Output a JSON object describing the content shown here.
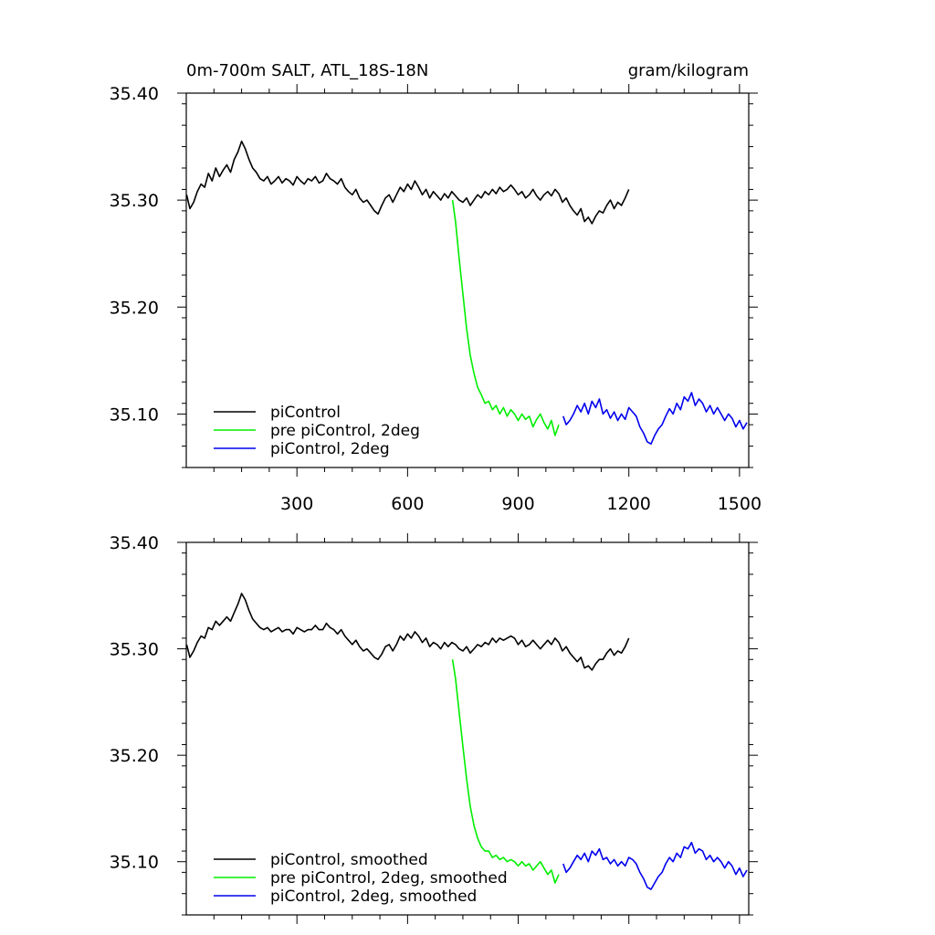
{
  "chart_data": [
    {
      "type": "line",
      "title_left": "0m-700m SALT, ATL_18S-18N",
      "title_right": "gram/kilogram",
      "xlim": [
        0,
        1525
      ],
      "ylim": [
        35.05,
        35.4
      ],
      "x_ticks": [
        300,
        600,
        900,
        1200,
        1500
      ],
      "x_tick_labels": [
        "300",
        "600",
        "900",
        "1200",
        "1500"
      ],
      "y_ticks": [
        35.1,
        35.2,
        35.3,
        35.4
      ],
      "y_tick_labels": [
        "35.10",
        "35.20",
        "35.30",
        "35.40"
      ],
      "grid": false,
      "legend_position": "bottom-left",
      "series": [
        {
          "name": "piControl",
          "color": "#000000",
          "x": [
            1,
            10,
            20,
            30,
            40,
            50,
            60,
            70,
            80,
            90,
            100,
            110,
            120,
            130,
            140,
            150,
            160,
            170,
            180,
            190,
            200,
            210,
            220,
            230,
            240,
            250,
            260,
            270,
            280,
            290,
            300,
            310,
            320,
            330,
            340,
            350,
            360,
            370,
            380,
            390,
            400,
            410,
            420,
            430,
            440,
            450,
            460,
            470,
            480,
            490,
            500,
            510,
            520,
            530,
            540,
            550,
            560,
            570,
            580,
            590,
            600,
            610,
            620,
            630,
            640,
            650,
            660,
            670,
            680,
            690,
            700,
            710,
            720,
            730,
            740,
            750,
            760,
            770,
            780,
            790,
            800,
            810,
            820,
            830,
            840,
            850,
            860,
            870,
            880,
            890,
            900,
            910,
            920,
            930,
            940,
            950,
            960,
            970,
            980,
            990,
            1000,
            1010,
            1020,
            1030,
            1040,
            1050,
            1060,
            1070,
            1080,
            1090,
            1100,
            1110,
            1120,
            1130,
            1140,
            1150,
            1160,
            1170,
            1180,
            1190,
            1200
          ],
          "y": [
            35.305,
            35.292,
            35.298,
            35.308,
            35.315,
            35.312,
            35.325,
            35.318,
            35.33,
            35.322,
            35.328,
            35.333,
            35.326,
            35.338,
            35.345,
            35.355,
            35.348,
            35.338,
            35.33,
            35.326,
            35.32,
            35.318,
            35.322,
            35.315,
            35.318,
            35.322,
            35.316,
            35.32,
            35.318,
            35.314,
            35.322,
            35.318,
            35.315,
            35.32,
            35.318,
            35.322,
            35.316,
            35.318,
            35.325,
            35.32,
            35.318,
            35.315,
            35.32,
            35.312,
            35.308,
            35.305,
            35.31,
            35.302,
            35.298,
            35.3,
            35.295,
            35.29,
            35.287,
            35.295,
            35.302,
            35.305,
            35.298,
            35.305,
            35.312,
            35.308,
            35.315,
            35.31,
            35.318,
            35.312,
            35.305,
            35.31,
            35.302,
            35.308,
            35.304,
            35.3,
            35.306,
            35.302,
            35.308,
            35.304,
            35.3,
            35.298,
            35.302,
            35.295,
            35.3,
            35.305,
            35.302,
            35.308,
            35.305,
            35.31,
            35.306,
            35.312,
            35.308,
            35.31,
            35.314,
            35.31,
            35.305,
            35.308,
            35.302,
            35.305,
            35.31,
            35.304,
            35.3,
            35.305,
            35.308,
            35.304,
            35.31,
            35.306,
            35.298,
            35.302,
            35.295,
            35.29,
            35.286,
            35.292,
            35.28,
            35.284,
            35.278,
            35.285,
            35.29,
            35.288,
            35.295,
            35.3,
            35.292,
            35.298,
            35.295,
            35.302,
            35.31
          ]
        },
        {
          "name": "pre piControl, 2deg",
          "color": "#00ee00",
          "x": [
            722,
            730,
            740,
            750,
            760,
            770,
            780,
            790,
            800,
            810,
            820,
            830,
            840,
            850,
            860,
            870,
            880,
            890,
            900,
            910,
            920,
            930,
            940,
            950,
            960,
            970,
            980,
            990,
            1000,
            1010
          ],
          "y": [
            35.3,
            35.28,
            35.245,
            35.212,
            35.18,
            35.155,
            35.138,
            35.125,
            35.118,
            35.11,
            35.112,
            35.104,
            35.108,
            35.1,
            35.106,
            35.098,
            35.104,
            35.1,
            35.094,
            35.1,
            35.095,
            35.098,
            35.088,
            35.095,
            35.1,
            35.092,
            35.086,
            35.094,
            35.08,
            35.09
          ]
        },
        {
          "name": "piControl, 2deg",
          "color": "#0000ee",
          "x": [
            1022,
            1030,
            1040,
            1050,
            1060,
            1070,
            1080,
            1090,
            1100,
            1110,
            1120,
            1130,
            1140,
            1150,
            1160,
            1170,
            1180,
            1190,
            1200,
            1210,
            1220,
            1230,
            1240,
            1250,
            1260,
            1270,
            1280,
            1290,
            1300,
            1310,
            1320,
            1330,
            1340,
            1350,
            1360,
            1370,
            1380,
            1390,
            1400,
            1410,
            1420,
            1430,
            1440,
            1450,
            1460,
            1470,
            1480,
            1490,
            1500,
            1510,
            1520
          ],
          "y": [
            35.098,
            35.09,
            35.094,
            35.1,
            35.108,
            35.102,
            35.11,
            35.1,
            35.112,
            35.106,
            35.114,
            35.1,
            35.104,
            35.096,
            35.102,
            35.094,
            35.1,
            35.095,
            35.106,
            35.102,
            35.098,
            35.088,
            35.082,
            35.074,
            35.072,
            35.08,
            35.086,
            35.09,
            35.098,
            35.105,
            35.1,
            35.11,
            35.104,
            35.116,
            35.112,
            35.12,
            35.108,
            35.114,
            35.11,
            35.102,
            35.108,
            35.1,
            35.106,
            35.1,
            35.094,
            35.1,
            35.096,
            35.088,
            35.094,
            35.086,
            35.092
          ]
        }
      ]
    },
    {
      "type": "line",
      "xlim": [
        0,
        1525
      ],
      "ylim": [
        35.05,
        35.4
      ],
      "x_ticks": [
        300,
        600,
        900,
        1200,
        1500
      ],
      "y_ticks": [
        35.1,
        35.2,
        35.3,
        35.4
      ],
      "y_tick_labels": [
        "35.10",
        "35.20",
        "35.30",
        "35.40"
      ],
      "grid": false,
      "legend_position": "bottom-left",
      "series": [
        {
          "name": "piControl, smoothed",
          "color": "#000000",
          "x": [
            1,
            10,
            20,
            30,
            40,
            50,
            60,
            70,
            80,
            90,
            100,
            110,
            120,
            130,
            140,
            150,
            160,
            170,
            180,
            190,
            200,
            210,
            220,
            230,
            240,
            250,
            260,
            270,
            280,
            290,
            300,
            310,
            320,
            330,
            340,
            350,
            360,
            370,
            380,
            390,
            400,
            410,
            420,
            430,
            440,
            450,
            460,
            470,
            480,
            490,
            500,
            510,
            520,
            530,
            540,
            550,
            560,
            570,
            580,
            590,
            600,
            610,
            620,
            630,
            640,
            650,
            660,
            670,
            680,
            690,
            700,
            710,
            720,
            730,
            740,
            750,
            760,
            770,
            780,
            790,
            800,
            810,
            820,
            830,
            840,
            850,
            860,
            870,
            880,
            890,
            900,
            910,
            920,
            930,
            940,
            950,
            960,
            970,
            980,
            990,
            1000,
            1010,
            1020,
            1030,
            1040,
            1050,
            1060,
            1070,
            1080,
            1090,
            1100,
            1110,
            1120,
            1130,
            1140,
            1150,
            1160,
            1170,
            1180,
            1190,
            1200
          ],
          "y": [
            35.304,
            35.292,
            35.298,
            35.306,
            35.312,
            35.31,
            35.32,
            35.318,
            35.326,
            35.322,
            35.326,
            35.33,
            35.326,
            35.334,
            35.342,
            35.352,
            35.346,
            35.336,
            35.328,
            35.324,
            35.32,
            35.318,
            35.32,
            35.316,
            35.318,
            35.32,
            35.316,
            35.318,
            35.318,
            35.314,
            35.32,
            35.318,
            35.316,
            35.318,
            35.318,
            35.322,
            35.318,
            35.318,
            35.324,
            35.32,
            35.318,
            35.314,
            35.318,
            35.312,
            35.308,
            35.304,
            35.308,
            35.302,
            35.298,
            35.3,
            35.296,
            35.292,
            35.29,
            35.295,
            35.302,
            35.304,
            35.298,
            35.304,
            35.312,
            35.308,
            35.314,
            35.31,
            35.316,
            35.312,
            35.306,
            35.31,
            35.302,
            35.306,
            35.304,
            35.3,
            35.306,
            35.302,
            35.306,
            35.304,
            35.3,
            35.298,
            35.302,
            35.296,
            35.3,
            35.304,
            35.302,
            35.306,
            35.304,
            35.31,
            35.306,
            35.31,
            35.308,
            35.31,
            35.312,
            35.31,
            35.304,
            35.308,
            35.302,
            35.304,
            35.308,
            35.304,
            35.3,
            35.304,
            35.308,
            35.304,
            35.31,
            35.306,
            35.298,
            35.302,
            35.296,
            35.292,
            35.288,
            35.292,
            35.282,
            35.284,
            35.28,
            35.286,
            35.29,
            35.29,
            35.296,
            35.3,
            35.294,
            35.298,
            35.296,
            35.302,
            35.31
          ]
        },
        {
          "name": "pre piControl, 2deg, smoothed",
          "color": "#00ee00",
          "x": [
            722,
            730,
            740,
            750,
            760,
            770,
            780,
            790,
            800,
            810,
            820,
            830,
            840,
            850,
            860,
            870,
            880,
            890,
            900,
            910,
            920,
            930,
            940,
            950,
            960,
            970,
            980,
            990,
            1000,
            1010
          ],
          "y": [
            35.29,
            35.272,
            35.24,
            35.208,
            35.178,
            35.152,
            35.134,
            35.122,
            35.114,
            35.11,
            35.11,
            35.104,
            35.106,
            35.102,
            35.104,
            35.1,
            35.102,
            35.1,
            35.096,
            35.1,
            35.096,
            35.098,
            35.092,
            35.096,
            35.1,
            35.094,
            35.088,
            35.092,
            35.08,
            35.088
          ]
        },
        {
          "name": "piControl, 2deg, smoothed",
          "color": "#0000ee",
          "x": [
            1022,
            1030,
            1040,
            1050,
            1060,
            1070,
            1080,
            1090,
            1100,
            1110,
            1120,
            1130,
            1140,
            1150,
            1160,
            1170,
            1180,
            1190,
            1200,
            1210,
            1220,
            1230,
            1240,
            1250,
            1260,
            1270,
            1280,
            1290,
            1300,
            1310,
            1320,
            1330,
            1340,
            1350,
            1360,
            1370,
            1380,
            1390,
            1400,
            1410,
            1420,
            1430,
            1440,
            1450,
            1460,
            1470,
            1480,
            1490,
            1500,
            1510,
            1520
          ],
          "y": [
            35.098,
            35.09,
            35.094,
            35.1,
            35.106,
            35.102,
            35.108,
            35.1,
            35.11,
            35.106,
            35.112,
            35.102,
            35.104,
            35.098,
            35.102,
            35.096,
            35.1,
            35.096,
            35.104,
            35.102,
            35.098,
            35.09,
            35.084,
            35.076,
            35.074,
            35.08,
            35.086,
            35.09,
            35.098,
            35.104,
            35.1,
            35.108,
            35.104,
            35.114,
            35.112,
            35.118,
            35.108,
            35.112,
            35.11,
            35.102,
            35.106,
            35.1,
            35.104,
            35.1,
            35.094,
            35.1,
            35.096,
            35.088,
            35.094,
            35.086,
            35.092
          ]
        }
      ]
    }
  ]
}
